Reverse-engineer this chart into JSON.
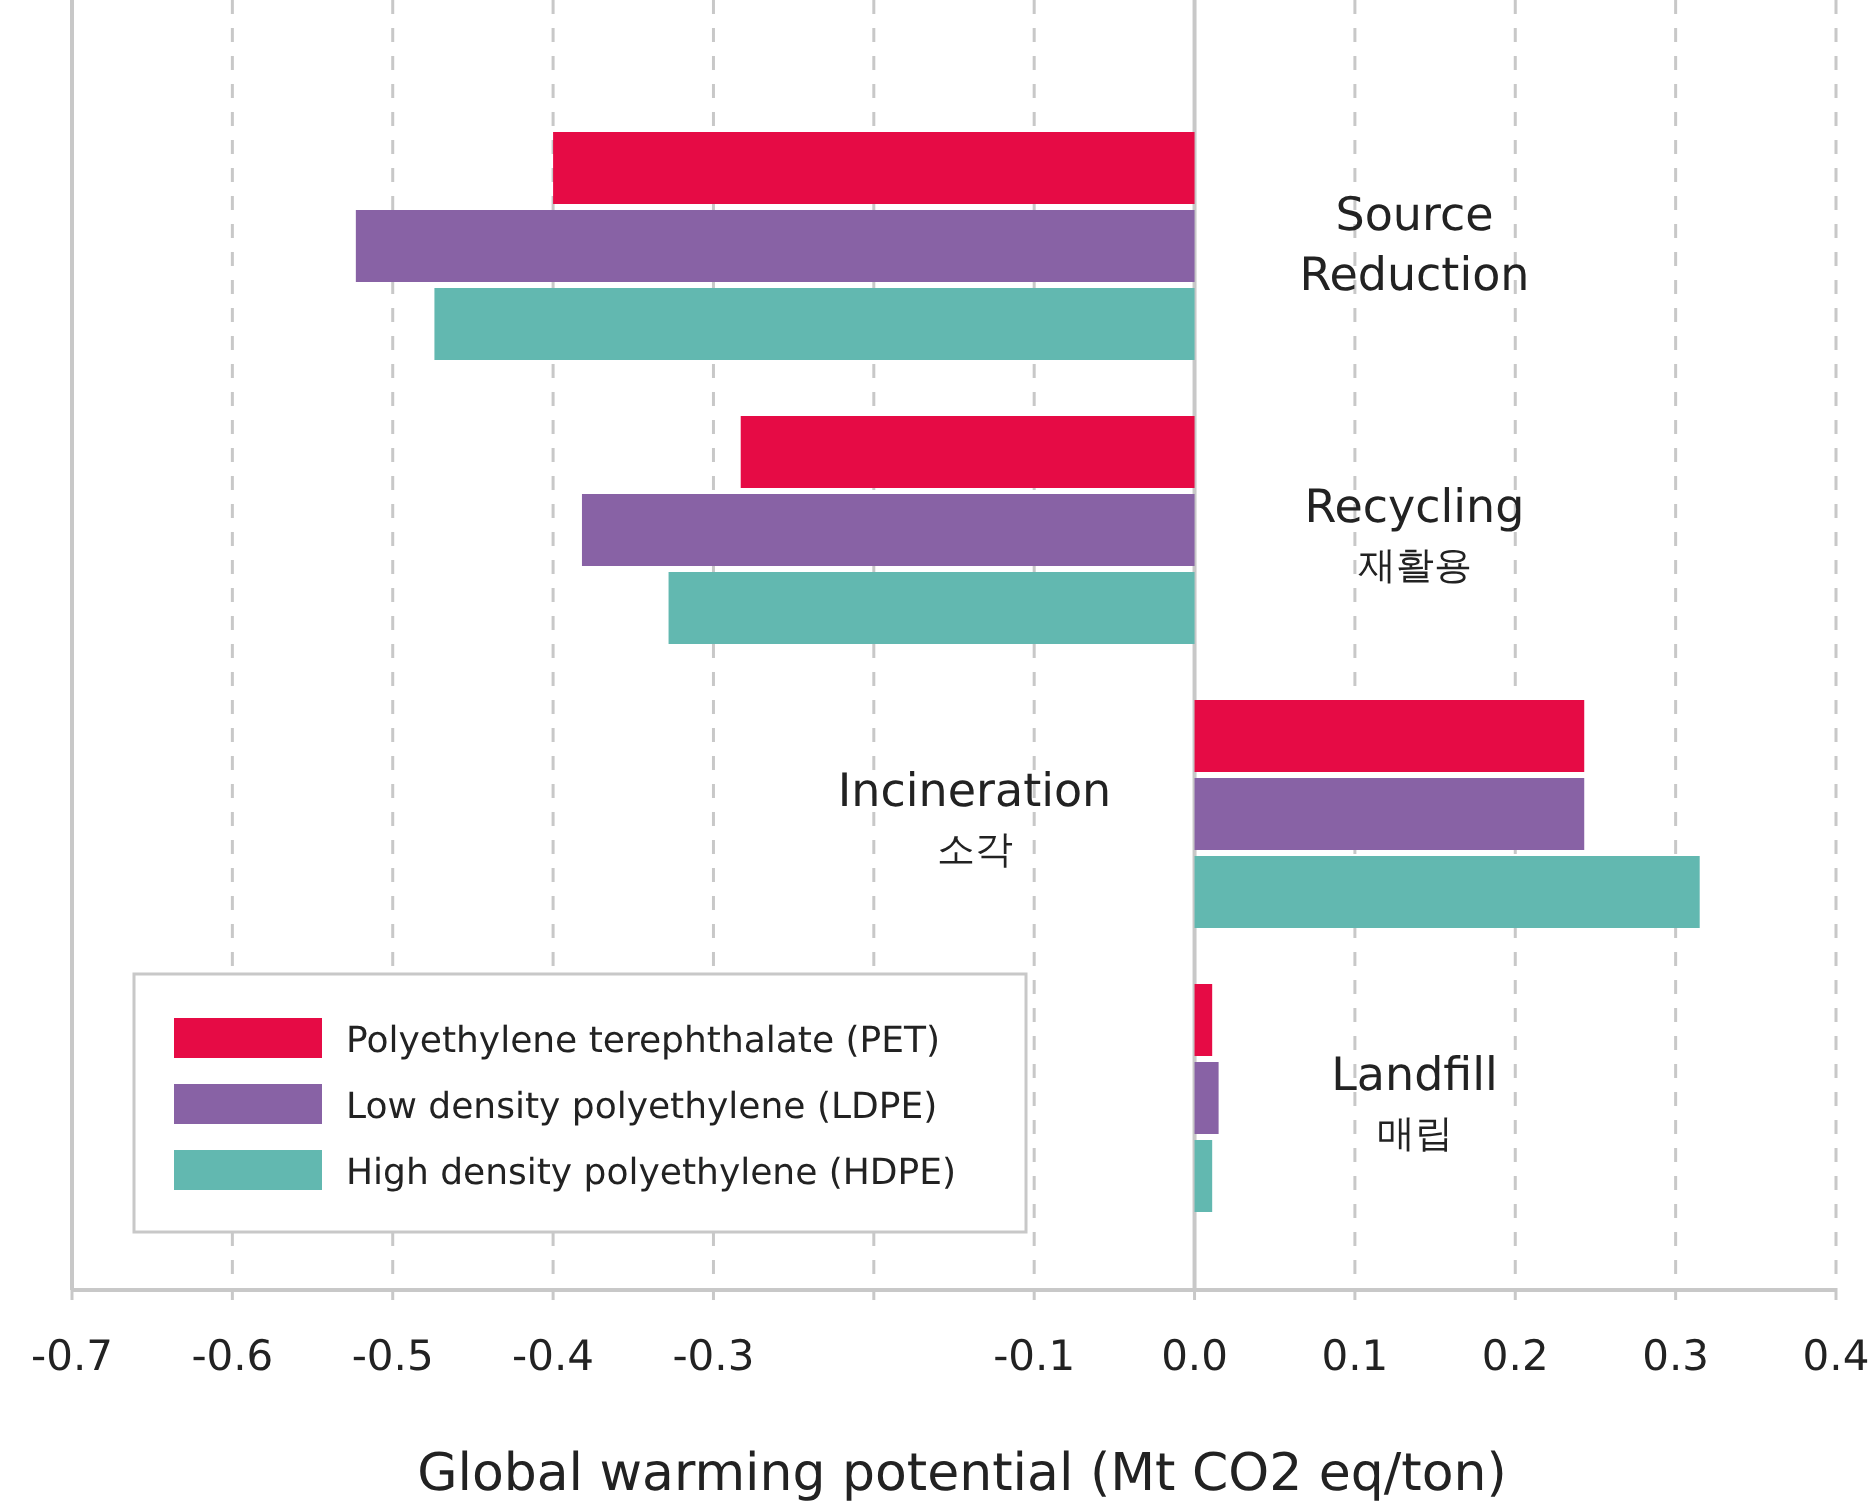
{
  "chart_data": {
    "type": "bar",
    "orientation": "horizontal",
    "categories": [
      "Source Reduction",
      "Recycling\n재활용",
      "Incineration\n소각",
      "Landfill\n매립"
    ],
    "series": [
      {
        "name": "Polyethylene terephthalate (PET)",
        "color": "#e60b45",
        "values": [
          -0.4,
          -0.283,
          0.243,
          0.011
        ]
      },
      {
        "name": "Low density polyethylene (LDPE)",
        "color": "#8862a5",
        "values": [
          -0.523,
          -0.382,
          0.243,
          0.015
        ]
      },
      {
        "name": "High density polyethylene (HDPE)",
        "color": "#62b8b0",
        "values": [
          -0.474,
          -0.328,
          0.315,
          0.011
        ]
      }
    ],
    "xlabel": "Global warming potential (Mt CO2 eq/ton)",
    "xlim": [
      -0.7,
      0.4
    ],
    "xticks": [
      -0.7,
      -0.6,
      -0.5,
      -0.4,
      -0.3,
      {
        "value": -0.2,
        "label": null
      },
      -0.1,
      {
        "value": 0,
        "label": "0.0"
      },
      0.1,
      0.2,
      0.3,
      0.4
    ],
    "grid": "x",
    "legend": "bottom left"
  }
}
